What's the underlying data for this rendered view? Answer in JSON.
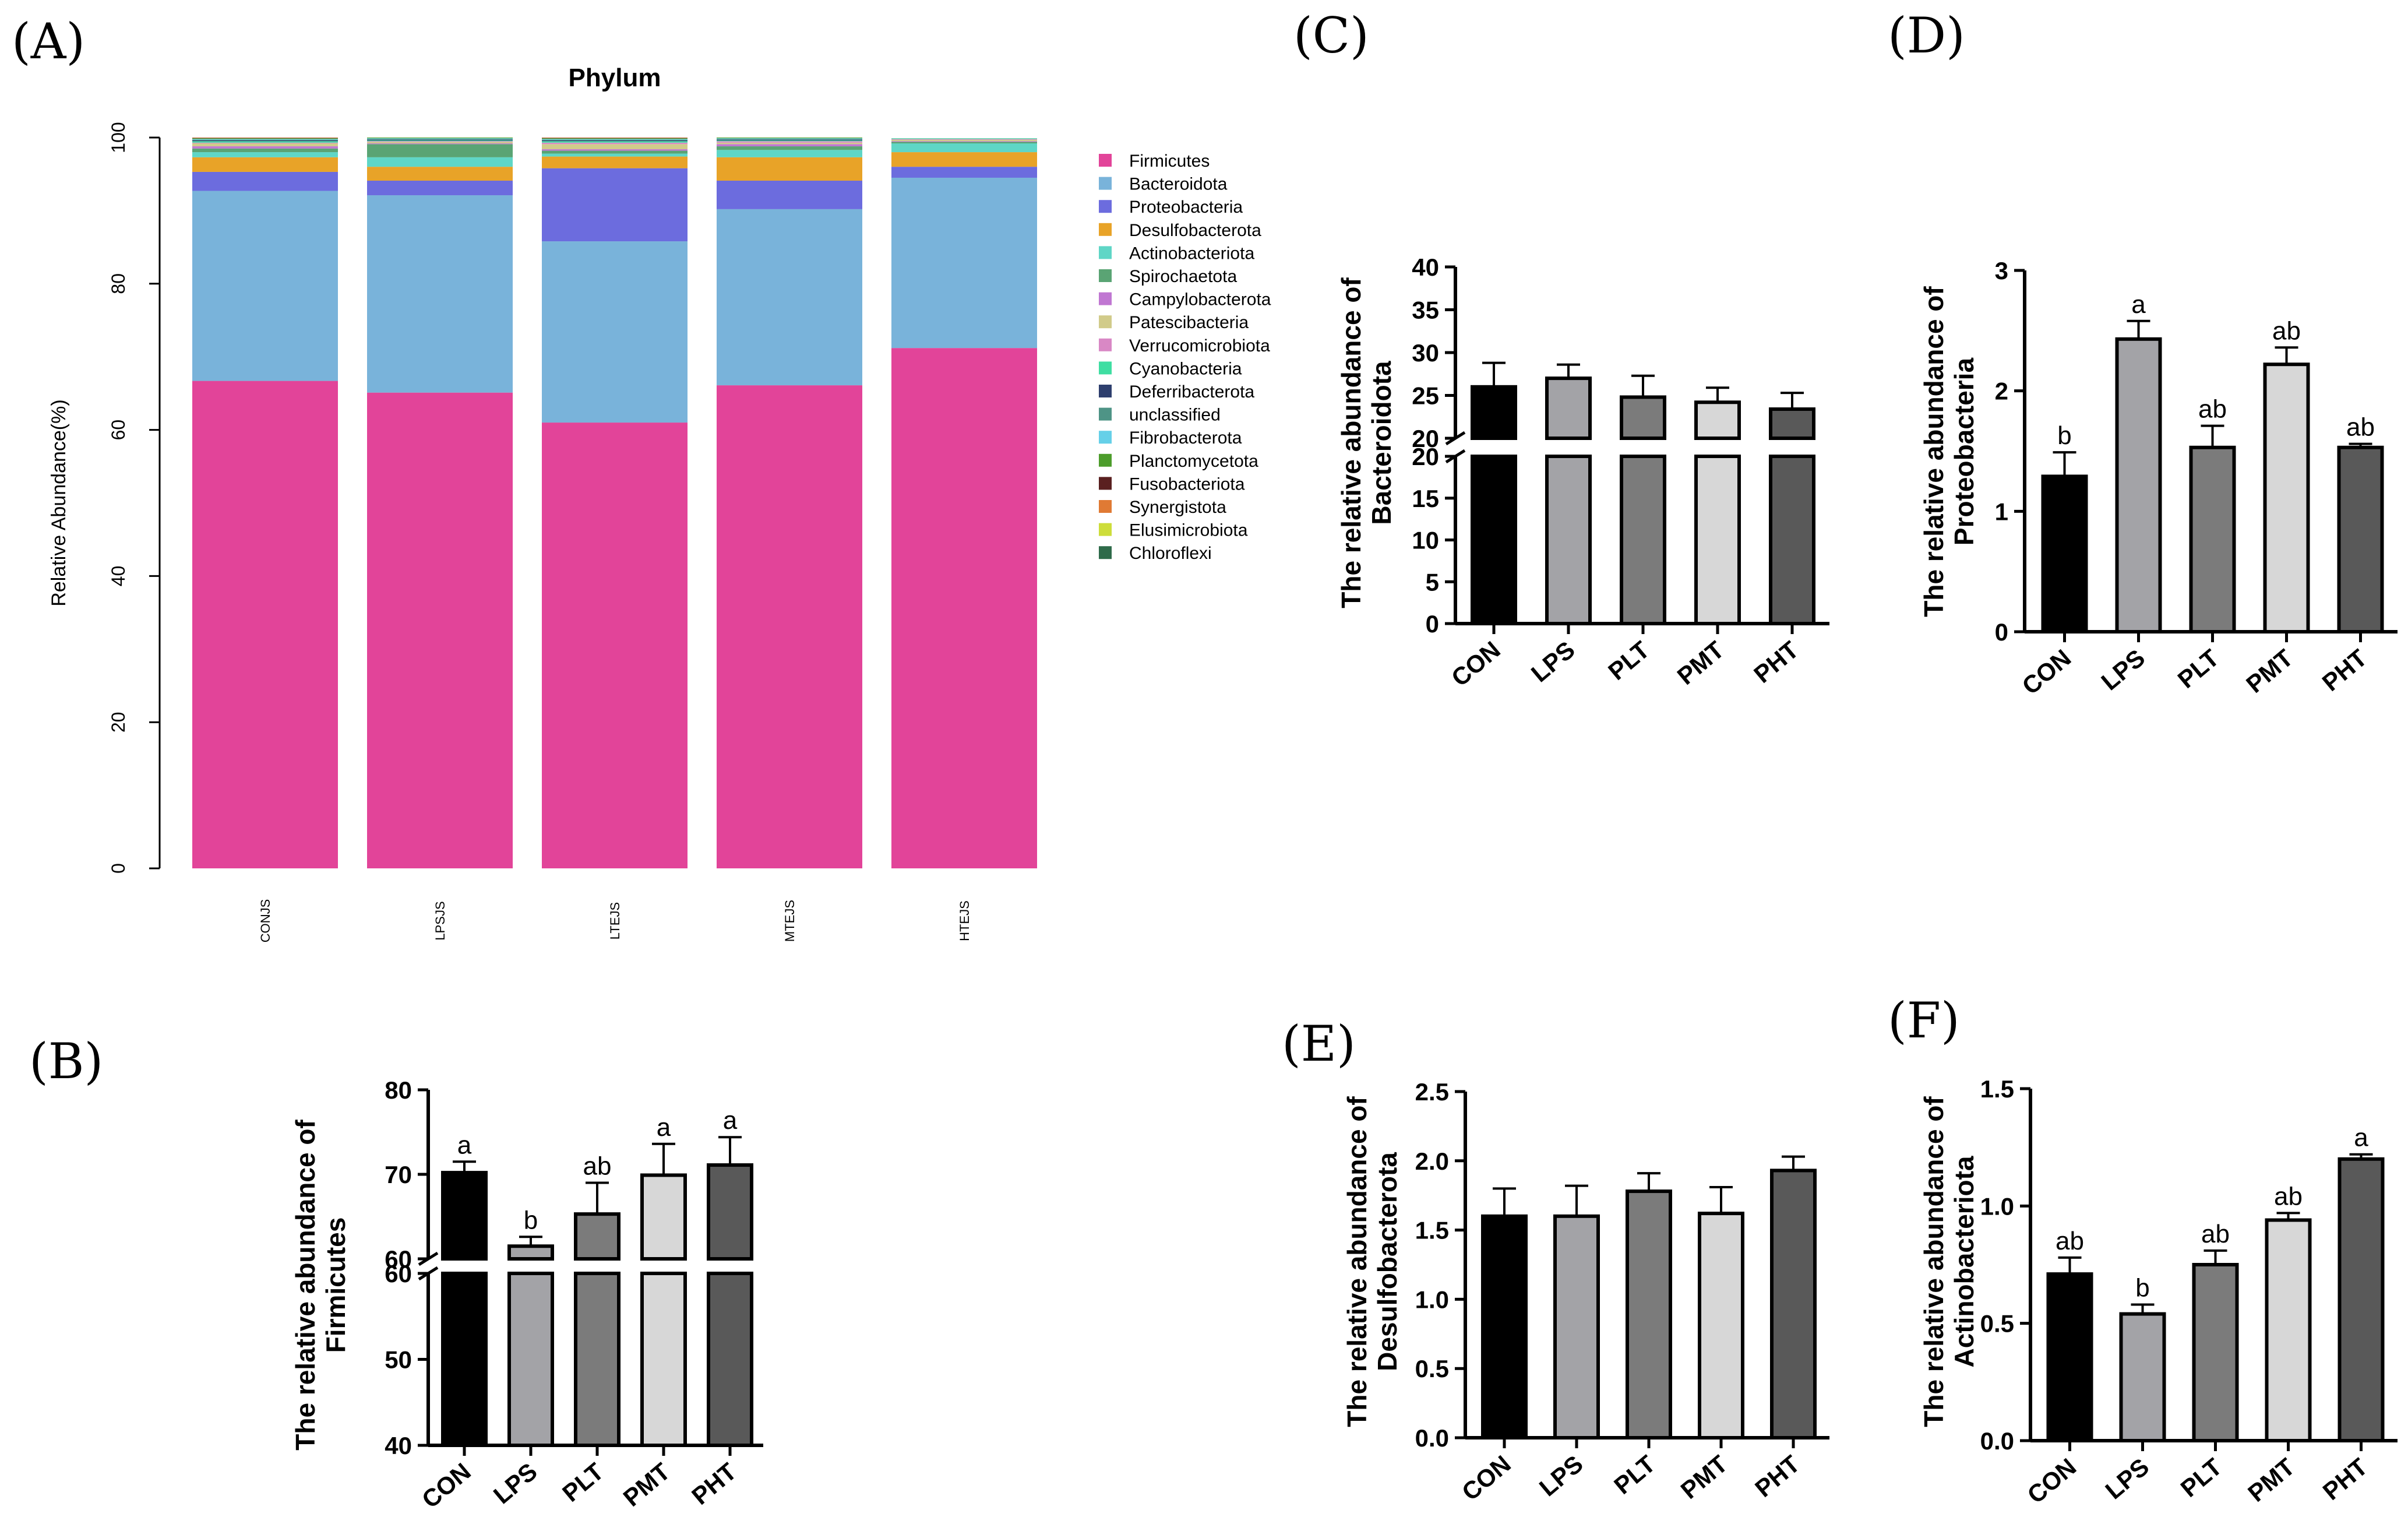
{
  "panel_labels": {
    "A": "(A)",
    "B": "(B)",
    "C": "(C)",
    "D": "(D)",
    "E": "(E)",
    "F": "(F)"
  },
  "group_labels": [
    "CON",
    "LPS",
    "PLT",
    "PMT",
    "PHT"
  ],
  "bar_colors": [
    "#000000",
    "#a3a3a7",
    "#7b7b7b",
    "#d7d7d7",
    "#595959"
  ],
  "chart_data": [
    {
      "id": "A",
      "type": "bar",
      "stacked": true,
      "title": "Phylum",
      "ylabel": "Relative Abundance(%)",
      "xlabel": "",
      "ylim": [
        0,
        100
      ],
      "yticks": [
        0,
        20,
        40,
        60,
        80,
        100
      ],
      "categories": [
        "CONJS",
        "LPSJS",
        "LTEJS",
        "MTEJS",
        "HTEJS"
      ],
      "legend_position": "right",
      "series": [
        {
          "name": "Firmicutes",
          "color": "#e24499",
          "values": [
            66.7,
            65.1,
            61.0,
            66.1,
            71.2
          ]
        },
        {
          "name": "Bacteroidota",
          "color": "#79b3da",
          "values": [
            26.0,
            27.0,
            24.8,
            24.1,
            23.3
          ]
        },
        {
          "name": "Proteobacteria",
          "color": "#6c6cde",
          "values": [
            2.6,
            2.0,
            10.0,
            3.9,
            1.5
          ]
        },
        {
          "name": "Desulfobacterota",
          "color": "#e8a328",
          "values": [
            2.0,
            1.9,
            1.6,
            3.2,
            2.0
          ]
        },
        {
          "name": "Actinobacteriota",
          "color": "#5fd6c6",
          "values": [
            0.7,
            1.3,
            0.4,
            1.0,
            1.2
          ]
        },
        {
          "name": "Spirochaetota",
          "color": "#5aa474",
          "values": [
            0.5,
            1.8,
            0.4,
            0.5,
            0.2
          ]
        },
        {
          "name": "Campylobacterota",
          "color": "#c077d2",
          "values": [
            0.3,
            0.1,
            0.2,
            0.3,
            0.1
          ]
        },
        {
          "name": "Patescibacteria",
          "color": "#d1cb8a",
          "values": [
            0.4,
            0.2,
            0.7,
            0.2,
            0.2
          ]
        },
        {
          "name": "Verrucomicrobiota",
          "color": "#d988c5",
          "values": [
            0.1,
            0.1,
            0.2,
            0.2,
            0.1
          ]
        },
        {
          "name": "Cyanobacteria",
          "color": "#3fdea2",
          "values": [
            0.2,
            0.1,
            0.2,
            0.1,
            0.1
          ]
        },
        {
          "name": "Deferribacterota",
          "color": "#2e3f6e",
          "values": [
            0.1,
            0.1,
            0.1,
            0.1,
            0.0
          ]
        },
        {
          "name": "unclassified",
          "color": "#4e9486",
          "values": [
            0.1,
            0.1,
            0.1,
            0.1,
            0.0
          ]
        },
        {
          "name": "Fibrobacterota",
          "color": "#66d0e8",
          "values": [
            0.1,
            0.1,
            0.1,
            0.1,
            0.0
          ]
        },
        {
          "name": "Planctomycetota",
          "color": "#4d9d2c",
          "values": [
            0.1,
            0.1,
            0.1,
            0.1,
            0.0
          ]
        },
        {
          "name": "Fusobacteriota",
          "color": "#5a2020",
          "values": [
            0.05,
            0.0,
            0.05,
            0.0,
            0.0
          ]
        },
        {
          "name": "Synergistota",
          "color": "#e07a34",
          "values": [
            0.05,
            0.0,
            0.05,
            0.0,
            0.0
          ]
        },
        {
          "name": "Elusimicrobiota",
          "color": "#cddd3a",
          "values": [
            0.0,
            0.0,
            0.0,
            0.0,
            0.0
          ]
        },
        {
          "name": "Chloroflexi",
          "color": "#2f6b4a",
          "values": [
            0.0,
            0.0,
            0.0,
            0.0,
            0.0
          ]
        }
      ]
    },
    {
      "id": "B",
      "type": "bar",
      "ylabel": [
        "The relative abundance of",
        "Firmicutes"
      ],
      "categories": [
        "CON",
        "LPS",
        "PLT",
        "PMT",
        "PHT"
      ],
      "values": [
        70.2,
        61.5,
        65.3,
        69.9,
        71.1
      ],
      "errors": [
        1.3,
        1.1,
        3.7,
        3.7,
        3.3
      ],
      "letters": [
        "a",
        "b",
        "ab",
        "a",
        "a"
      ],
      "axis_break": {
        "lower": [
          40,
          60
        ],
        "upper": [
          60,
          80
        ]
      },
      "yticks_lower": [
        40,
        50,
        60
      ],
      "yticks_upper": [
        60,
        70,
        80
      ]
    },
    {
      "id": "C",
      "type": "bar",
      "ylabel": [
        "The relative abundance of",
        "Bacteroidota"
      ],
      "categories": [
        "CON",
        "LPS",
        "PLT",
        "PMT",
        "PHT"
      ],
      "values": [
        26.0,
        27.0,
        24.8,
        24.2,
        23.4
      ],
      "errors": [
        2.8,
        1.6,
        2.5,
        1.7,
        1.9
      ],
      "letters": [
        "",
        "",
        "",
        "",
        ""
      ],
      "axis_break": {
        "lower": [
          0,
          20
        ],
        "upper": [
          20,
          40
        ]
      },
      "yticks_lower": [
        0,
        5,
        10,
        15,
        20
      ],
      "yticks_upper": [
        20,
        25,
        30,
        35,
        40
      ]
    },
    {
      "id": "D",
      "type": "bar",
      "ylabel": [
        "The relative abundance of",
        "Proteobacteria"
      ],
      "categories": [
        "CON",
        "LPS",
        "PLT",
        "PMT",
        "PHT"
      ],
      "values": [
        1.29,
        2.43,
        1.53,
        2.22,
        1.53
      ],
      "errors": [
        0.2,
        0.15,
        0.18,
        0.14,
        0.03
      ],
      "letters": [
        "b",
        "a",
        "ab",
        "ab",
        "ab"
      ],
      "ylim": [
        0,
        3
      ],
      "yticks": [
        0,
        1,
        2,
        3
      ],
      "ytick_labels": [
        "0",
        "1",
        "2",
        "3"
      ]
    },
    {
      "id": "E",
      "type": "bar",
      "ylabel": [
        "The relative abundance of",
        "Desulfobacterota"
      ],
      "categories": [
        "CON",
        "LPS",
        "PLT",
        "PMT",
        "PHT"
      ],
      "values": [
        1.6,
        1.6,
        1.78,
        1.62,
        1.93
      ],
      "errors": [
        0.2,
        0.22,
        0.13,
        0.19,
        0.1
      ],
      "letters": [
        "",
        "",
        "",
        "",
        ""
      ],
      "ylim": [
        0,
        2.5
      ],
      "yticks": [
        0,
        0.5,
        1.0,
        1.5,
        2.0,
        2.5
      ],
      "ytick_labels": [
        "0.0",
        "0.5",
        "1.0",
        "1.5",
        "2.0",
        "2.5"
      ]
    },
    {
      "id": "F",
      "type": "bar",
      "ylabel": [
        "The relative abundance of",
        "Actinobacteriota"
      ],
      "categories": [
        "CON",
        "LPS",
        "PLT",
        "PMT",
        "PHT"
      ],
      "values": [
        0.71,
        0.54,
        0.75,
        0.94,
        1.2
      ],
      "errors": [
        0.07,
        0.04,
        0.06,
        0.03,
        0.02
      ],
      "letters": [
        "ab",
        "b",
        "ab",
        "ab",
        "a"
      ],
      "ylim": [
        0,
        1.5
      ],
      "yticks": [
        0,
        0.5,
        1.0,
        1.5
      ],
      "ytick_labels": [
        "0.0",
        "0.5",
        "1.0",
        "1.5"
      ]
    }
  ]
}
